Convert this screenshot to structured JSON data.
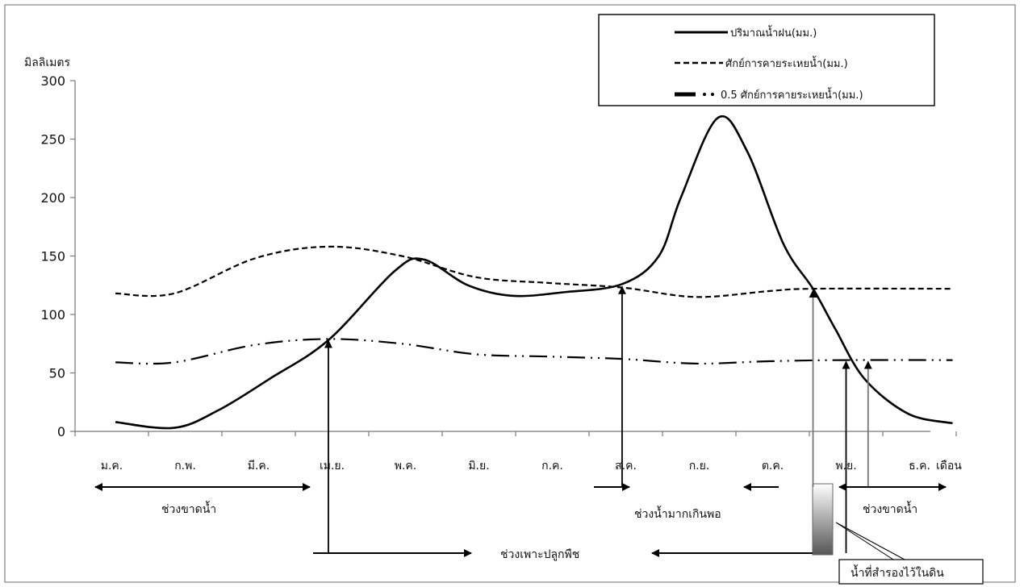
{
  "chart_data": {
    "type": "line",
    "ylabel": "มิลลิเมตร",
    "xlabel": "เดือน",
    "ylim": [
      0,
      300
    ],
    "yticks": [
      0,
      50,
      100,
      150,
      200,
      250,
      300
    ],
    "categories": [
      "ม.ค.",
      "ก.พ.",
      "มี.ค.",
      "เม.ย.",
      "พ.ค.",
      "มิ.ย.",
      "ก.ค.",
      "ส.ค.",
      "ก.ย.",
      "ต.ค.",
      "พ.ย.",
      "ธ.ค."
    ],
    "legend_position": "top-right",
    "grid": false,
    "series": [
      {
        "name": "ปริมาณน้ำฝน(มม.)",
        "style": "solid",
        "points": [
          [
            0.1,
            8
          ],
          [
            0.9,
            3
          ],
          [
            1.5,
            18
          ],
          [
            2.2,
            45
          ],
          [
            3.0,
            78
          ],
          [
            3.9,
            137
          ],
          [
            4.3,
            147
          ],
          [
            4.9,
            125
          ],
          [
            5.5,
            116
          ],
          [
            6.2,
            119
          ],
          [
            7.0,
            126
          ],
          [
            7.5,
            150
          ],
          [
            7.8,
            200
          ],
          [
            8.3,
            268
          ],
          [
            8.7,
            240
          ],
          [
            9.2,
            160
          ],
          [
            9.6,
            122
          ],
          [
            9.9,
            88
          ],
          [
            10.3,
            45
          ],
          [
            10.9,
            15
          ],
          [
            11.5,
            7
          ]
        ]
      },
      {
        "name": "ศักย์การคายระเหยน้ำ(มม.)",
        "style": "dashed",
        "points": [
          [
            0.1,
            118
          ],
          [
            0.9,
            118
          ],
          [
            2.0,
            148
          ],
          [
            3.0,
            158
          ],
          [
            4.0,
            150
          ],
          [
            5.0,
            132
          ],
          [
            6.0,
            127
          ],
          [
            7.0,
            123
          ],
          [
            8.0,
            115
          ],
          [
            9.0,
            120
          ],
          [
            9.6,
            122
          ],
          [
            11.5,
            122
          ]
        ]
      },
      {
        "name": "0.5 ศักย์การคายระเหยน้ำ(มม.)",
        "style": "dash-dot",
        "points": [
          [
            0.1,
            59
          ],
          [
            0.9,
            59
          ],
          [
            2.0,
            74
          ],
          [
            3.0,
            79
          ],
          [
            4.0,
            75
          ],
          [
            5.0,
            66
          ],
          [
            6.0,
            64
          ],
          [
            7.0,
            62
          ],
          [
            8.0,
            58
          ],
          [
            9.0,
            60
          ],
          [
            10.0,
            61
          ],
          [
            11.5,
            61
          ]
        ]
      }
    ],
    "annotations": {
      "deficit_label": "ช่วงขาดน้ำ",
      "surplus_label": "ช่วงน้ำมากเกินพอ",
      "growing_label": "ช่วงเพาะปลูกพืช",
      "storage_label": "น้ำที่สำรองไว้ในดิน",
      "arrow_points": [
        {
          "name": "arrow-growing-start",
          "x": 3.0,
          "y": 79,
          "style": "black"
        },
        {
          "name": "arrow-surplus-start",
          "x": 7.0,
          "y": 125,
          "style": "black"
        },
        {
          "name": "arrow-surplus-end",
          "x": 9.6,
          "y": 122,
          "style": "gray"
        },
        {
          "name": "arrow-growing-end",
          "x": 10.05,
          "y": 61,
          "style": "black"
        },
        {
          "name": "arrow-deficit-start",
          "x": 10.35,
          "y": 61,
          "style": "gray"
        }
      ]
    }
  }
}
